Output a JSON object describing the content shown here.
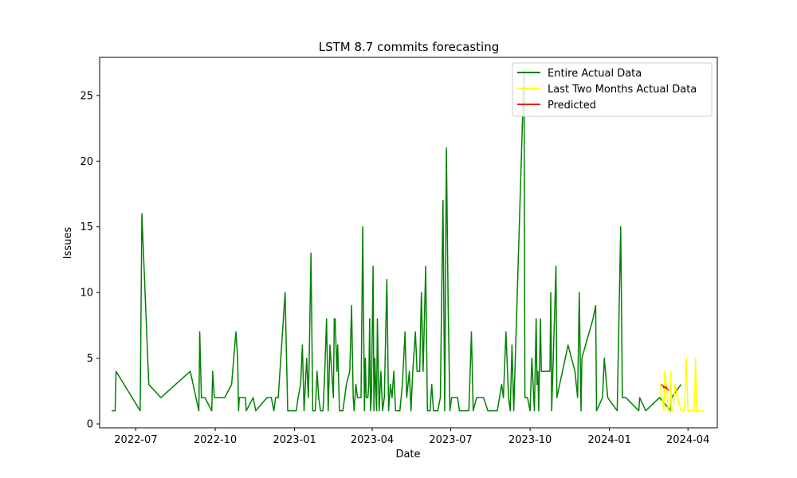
{
  "chart_data": {
    "type": "line",
    "title": "LSTM 8.7 commits forecasting",
    "xlabel": "Date",
    "ylabel": "Issues",
    "xlim": [
      "2022-05-20",
      "2024-05-05"
    ],
    "ylim": [
      -0.3,
      27.9
    ],
    "x_ticks": [
      {
        "date": "2022-07-01",
        "label": "2022-07"
      },
      {
        "date": "2022-10-01",
        "label": "2022-10"
      },
      {
        "date": "2023-01-01",
        "label": "2023-01"
      },
      {
        "date": "2023-04-01",
        "label": "2023-04"
      },
      {
        "date": "2023-07-01",
        "label": "2023-07"
      },
      {
        "date": "2023-10-01",
        "label": "2023-10"
      },
      {
        "date": "2024-01-01",
        "label": "2024-01"
      },
      {
        "date": "2024-04-01",
        "label": "2024-04"
      }
    ],
    "y_ticks": [
      0,
      5,
      10,
      15,
      20,
      25
    ],
    "grid": false,
    "legend_position": "top-right",
    "series": [
      {
        "name": "Entire Actual Data",
        "color": "#008000",
        "points": [
          [
            "2022-06-03",
            1
          ],
          [
            "2022-06-07",
            1
          ],
          [
            "2022-06-08",
            4
          ],
          [
            "2022-07-06",
            1
          ],
          [
            "2022-07-08",
            16
          ],
          [
            "2022-07-16",
            3
          ],
          [
            "2022-07-30",
            2
          ],
          [
            "2022-09-02",
            4
          ],
          [
            "2022-09-12",
            1
          ],
          [
            "2022-09-13",
            7
          ],
          [
            "2022-09-15",
            2
          ],
          [
            "2022-09-19",
            2
          ],
          [
            "2022-09-27",
            1
          ],
          [
            "2022-09-28",
            4
          ],
          [
            "2022-09-30",
            2
          ],
          [
            "2022-10-12",
            2
          ],
          [
            "2022-10-20",
            3
          ],
          [
            "2022-10-25",
            7
          ],
          [
            "2022-10-27",
            5
          ],
          [
            "2022-10-28",
            1
          ],
          [
            "2022-10-29",
            2
          ],
          [
            "2022-11-05",
            2
          ],
          [
            "2022-11-06",
            1
          ],
          [
            "2022-11-14",
            2
          ],
          [
            "2022-11-17",
            1
          ],
          [
            "2022-11-30",
            2
          ],
          [
            "2022-12-05",
            2
          ],
          [
            "2022-12-08",
            1
          ],
          [
            "2022-12-10",
            2
          ],
          [
            "2022-12-13",
            2
          ],
          [
            "2022-12-21",
            10
          ],
          [
            "2022-12-24",
            1
          ],
          [
            "2023-01-03",
            1
          ],
          [
            "2023-01-05",
            2
          ],
          [
            "2023-01-08",
            3
          ],
          [
            "2023-01-10",
            6
          ],
          [
            "2023-01-12",
            1
          ],
          [
            "2023-01-15",
            5
          ],
          [
            "2023-01-17",
            2
          ],
          [
            "2023-01-18",
            5
          ],
          [
            "2023-01-20",
            13
          ],
          [
            "2023-01-22",
            1
          ],
          [
            "2023-01-25",
            1
          ],
          [
            "2023-01-27",
            4
          ],
          [
            "2023-01-29",
            2
          ],
          [
            "2023-01-31",
            1
          ],
          [
            "2023-02-03",
            1
          ],
          [
            "2023-02-05",
            4
          ],
          [
            "2023-02-07",
            8
          ],
          [
            "2023-02-09",
            1
          ],
          [
            "2023-02-11",
            6
          ],
          [
            "2023-02-13",
            4
          ],
          [
            "2023-02-15",
            2
          ],
          [
            "2023-02-16",
            8
          ],
          [
            "2023-02-17",
            8
          ],
          [
            "2023-02-19",
            4
          ],
          [
            "2023-02-20",
            6
          ],
          [
            "2023-02-22",
            1
          ],
          [
            "2023-02-26",
            1
          ],
          [
            "2023-03-02",
            3
          ],
          [
            "2023-03-06",
            4
          ],
          [
            "2023-03-08",
            9
          ],
          [
            "2023-03-10",
            2
          ],
          [
            "2023-03-11",
            1
          ],
          [
            "2023-03-13",
            3
          ],
          [
            "2023-03-15",
            2
          ],
          [
            "2023-03-16",
            2
          ],
          [
            "2023-03-19",
            2
          ],
          [
            "2023-03-21",
            15
          ],
          [
            "2023-03-23",
            1
          ],
          [
            "2023-03-24",
            5
          ],
          [
            "2023-03-25",
            2
          ],
          [
            "2023-03-27",
            2
          ],
          [
            "2023-03-28",
            3
          ],
          [
            "2023-03-29",
            8
          ],
          [
            "2023-03-30",
            1
          ],
          [
            "2023-03-31",
            2
          ],
          [
            "2023-04-02",
            12
          ],
          [
            "2023-04-03",
            1
          ],
          [
            "2023-04-04",
            5
          ],
          [
            "2023-04-06",
            1
          ],
          [
            "2023-04-07",
            8
          ],
          [
            "2023-04-09",
            1
          ],
          [
            "2023-04-11",
            4
          ],
          [
            "2023-04-13",
            1
          ],
          [
            "2023-04-15",
            2
          ],
          [
            "2023-04-18",
            11
          ],
          [
            "2023-04-20",
            1
          ],
          [
            "2023-04-22",
            3
          ],
          [
            "2023-04-24",
            2
          ],
          [
            "2023-04-26",
            4
          ],
          [
            "2023-04-28",
            1
          ],
          [
            "2023-05-03",
            1
          ],
          [
            "2023-05-06",
            3
          ],
          [
            "2023-05-09",
            7
          ],
          [
            "2023-05-11",
            2
          ],
          [
            "2023-05-14",
            4
          ],
          [
            "2023-05-16",
            1
          ],
          [
            "2023-05-18",
            4
          ],
          [
            "2023-05-21",
            7
          ],
          [
            "2023-05-23",
            4
          ],
          [
            "2023-05-26",
            4
          ],
          [
            "2023-05-28",
            10
          ],
          [
            "2023-05-30",
            4
          ],
          [
            "2023-06-02",
            12
          ],
          [
            "2023-06-04",
            1
          ],
          [
            "2023-06-07",
            1
          ],
          [
            "2023-06-09",
            3
          ],
          [
            "2023-06-11",
            1
          ],
          [
            "2023-06-16",
            1
          ],
          [
            "2023-06-19",
            2
          ],
          [
            "2023-06-22",
            17
          ],
          [
            "2023-06-24",
            1
          ],
          [
            "2023-06-26",
            21
          ],
          [
            "2023-06-28",
            9
          ],
          [
            "2023-06-30",
            1
          ],
          [
            "2023-07-02",
            2
          ],
          [
            "2023-07-04",
            2
          ],
          [
            "2023-07-09",
            2
          ],
          [
            "2023-07-11",
            1
          ],
          [
            "2023-07-22",
            1
          ],
          [
            "2023-07-25",
            7
          ],
          [
            "2023-07-27",
            1
          ],
          [
            "2023-07-31",
            2
          ],
          [
            "2023-08-08",
            2
          ],
          [
            "2023-08-13",
            1
          ],
          [
            "2023-08-24",
            1
          ],
          [
            "2023-08-29",
            3
          ],
          [
            "2023-08-31",
            2
          ],
          [
            "2023-09-03",
            7
          ],
          [
            "2023-09-06",
            2
          ],
          [
            "2023-09-08",
            1
          ],
          [
            "2023-09-10",
            6
          ],
          [
            "2023-09-12",
            1
          ],
          [
            "2023-09-24",
            27
          ],
          [
            "2023-09-25",
            2
          ],
          [
            "2023-09-28",
            2
          ],
          [
            "2023-10-01",
            1
          ],
          [
            "2023-10-03",
            5
          ],
          [
            "2023-10-06",
            1
          ],
          [
            "2023-10-08",
            8
          ],
          [
            "2023-10-09",
            3
          ],
          [
            "2023-10-10",
            4
          ],
          [
            "2023-10-11",
            1
          ],
          [
            "2023-10-13",
            8
          ],
          [
            "2023-10-14",
            4
          ],
          [
            "2023-10-17",
            4
          ],
          [
            "2023-10-24",
            4
          ],
          [
            "2023-10-25",
            10
          ],
          [
            "2023-10-26",
            1
          ],
          [
            "2023-10-31",
            12
          ],
          [
            "2023-11-01",
            2
          ],
          [
            "2023-11-14",
            6
          ],
          [
            "2023-11-22",
            4
          ],
          [
            "2023-11-25",
            2
          ],
          [
            "2023-11-27",
            10
          ],
          [
            "2023-11-29",
            1
          ],
          [
            "2023-11-30",
            5
          ],
          [
            "2023-12-13",
            8
          ],
          [
            "2023-12-16",
            9
          ],
          [
            "2023-12-17",
            1
          ],
          [
            "2023-12-24",
            2
          ],
          [
            "2023-12-26",
            5
          ],
          [
            "2023-12-30",
            2
          ],
          [
            "2024-01-10",
            1
          ],
          [
            "2024-01-14",
            15
          ],
          [
            "2024-01-16",
            2
          ],
          [
            "2024-01-20",
            2
          ],
          [
            "2024-02-04",
            1
          ],
          [
            "2024-02-05",
            2
          ],
          [
            "2024-02-12",
            1
          ],
          [
            "2024-02-28",
            2
          ],
          [
            "2024-03-12",
            1
          ],
          [
            "2024-03-13",
            2
          ],
          [
            "2024-03-24",
            3
          ]
        ]
      },
      {
        "name": "Last Two Months Actual Data",
        "color": "#ffff00",
        "points": [
          [
            "2024-02-29",
            3
          ],
          [
            "2024-03-01",
            2
          ],
          [
            "2024-03-02",
            2
          ],
          [
            "2024-03-04",
            1
          ],
          [
            "2024-03-05",
            4
          ],
          [
            "2024-03-07",
            3
          ],
          [
            "2024-03-09",
            1
          ],
          [
            "2024-03-11",
            1
          ],
          [
            "2024-03-12",
            4
          ],
          [
            "2024-03-13",
            1
          ],
          [
            "2024-03-15",
            1
          ],
          [
            "2024-03-17",
            3
          ],
          [
            "2024-03-20",
            2
          ],
          [
            "2024-03-24",
            1
          ],
          [
            "2024-03-28",
            1
          ],
          [
            "2024-03-30",
            5
          ],
          [
            "2024-04-01",
            1
          ],
          [
            "2024-04-08",
            1
          ],
          [
            "2024-04-10",
            5
          ],
          [
            "2024-04-11",
            1
          ],
          [
            "2024-04-13",
            1
          ],
          [
            "2024-04-19",
            1
          ]
        ]
      },
      {
        "name": "Predicted",
        "color": "#ff0000",
        "points": [
          [
            "2024-03-01",
            3.0
          ],
          [
            "2024-03-03",
            2.9
          ],
          [
            "2024-03-04",
            2.75
          ],
          [
            "2024-03-05",
            2.85
          ],
          [
            "2024-03-06",
            2.7
          ],
          [
            "2024-03-07",
            2.8
          ],
          [
            "2024-03-08",
            2.65
          ],
          [
            "2024-03-09",
            2.6
          ],
          [
            "2024-03-10",
            2.55
          ]
        ]
      }
    ]
  }
}
